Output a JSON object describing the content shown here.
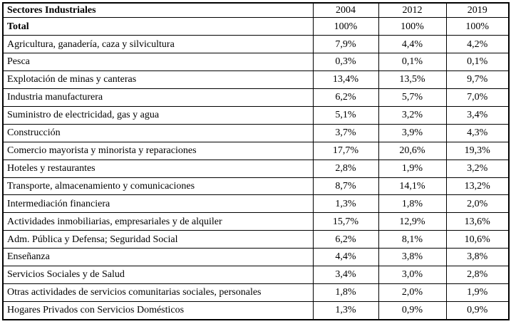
{
  "table": {
    "title": "Sectores Industriales",
    "header": {
      "sector_label": "Sectores Industriales",
      "years": [
        "2004",
        "2012",
        "2019"
      ]
    },
    "rows": [
      {
        "label": "Total",
        "bold": true,
        "values": [
          "100%",
          "100%",
          "100%"
        ]
      },
      {
        "label": "Agricultura, ganadería, caza y silvicultura",
        "bold": false,
        "values": [
          "7,9%",
          "4,4%",
          "4,2%"
        ]
      },
      {
        "label": "Pesca",
        "bold": false,
        "values": [
          "0,3%",
          "0,1%",
          "0,1%"
        ]
      },
      {
        "label": "Explotación de minas y canteras",
        "bold": false,
        "values": [
          "13,4%",
          "13,5%",
          "9,7%"
        ]
      },
      {
        "label": "Industria manufacturera",
        "bold": false,
        "values": [
          "6,2%",
          "5,7%",
          "7,0%"
        ]
      },
      {
        "label": "Suministro de electricidad, gas y agua",
        "bold": false,
        "values": [
          "5,1%",
          "3,2%",
          "3,4%"
        ]
      },
      {
        "label": "Construcción",
        "bold": false,
        "values": [
          "3,7%",
          "3,9%",
          "4,3%"
        ]
      },
      {
        "label": "Comercio mayorista y minorista y reparaciones",
        "bold": false,
        "values": [
          "17,7%",
          "20,6%",
          "19,3%"
        ]
      },
      {
        "label": "Hoteles y restaurantes",
        "bold": false,
        "values": [
          "2,8%",
          "1,9%",
          "3,2%"
        ]
      },
      {
        "label": "Transporte, almacenamiento y comunicaciones",
        "bold": false,
        "values": [
          "8,7%",
          "14,1%",
          "13,2%"
        ]
      },
      {
        "label": "Intermediación financiera",
        "bold": false,
        "values": [
          "1,3%",
          "1,8%",
          "2,0%"
        ]
      },
      {
        "label": "Actividades inmobiliarias, empresariales y de alquiler",
        "bold": false,
        "values": [
          "15,7%",
          "12,9%",
          "13,6%"
        ]
      },
      {
        "label": "Adm. Pública y Defensa; Seguridad Social",
        "bold": false,
        "values": [
          "6,2%",
          "8,1%",
          "10,6%"
        ]
      },
      {
        "label": "Enseñanza",
        "bold": false,
        "values": [
          "4,4%",
          "3,8%",
          "3,8%"
        ]
      },
      {
        "label": "Servicios Sociales y de Salud",
        "bold": false,
        "values": [
          "3,4%",
          "3,0%",
          "2,8%"
        ]
      },
      {
        "label": "Otras actividades de servicios comunitarias sociales, personales",
        "bold": false,
        "values": [
          "1,8%",
          "2,0%",
          "1,9%"
        ]
      },
      {
        "label": "Hogares Privados con Servicios Domésticos",
        "bold": false,
        "values": [
          "1,3%",
          "0,9%",
          "0,9%"
        ]
      }
    ],
    "colors": {
      "border": "#000000",
      "text": "#000000",
      "background": "#ffffff"
    }
  }
}
